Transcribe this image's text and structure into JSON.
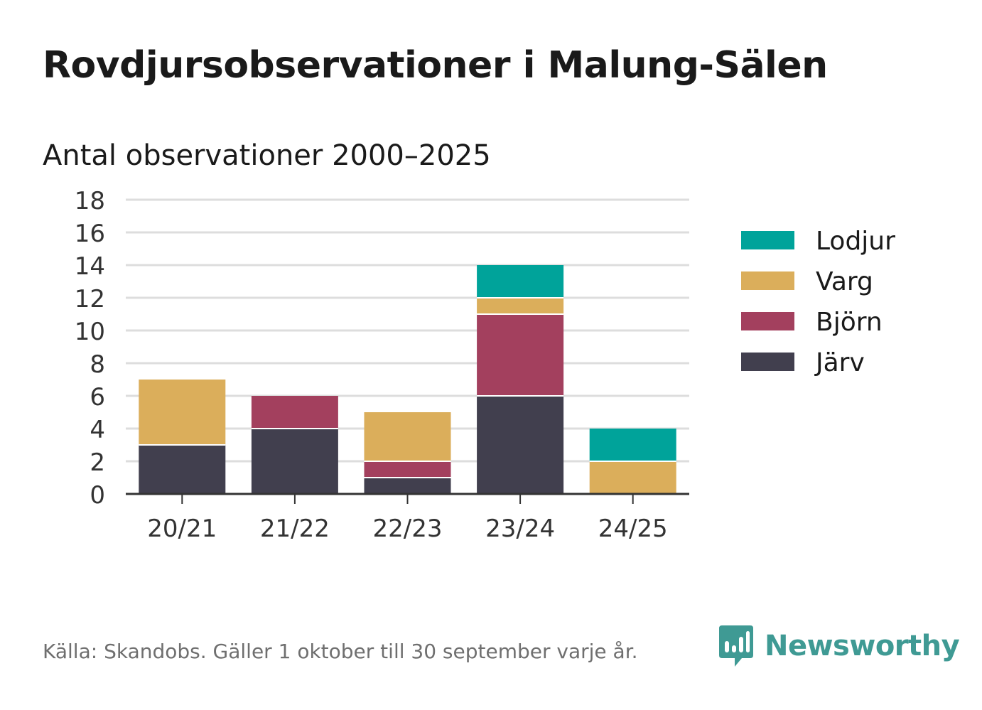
{
  "title": "Rovdjursobservationer i Malung-Sälen",
  "subtitle": "Antal observationer 2000–2025",
  "source": "Källa: Skandobs. Gäller 1 oktober till 30 september varje år.",
  "brand": {
    "name": "Newsworthy",
    "color": "#3f9a94",
    "icon": "newsworthy-logo-icon"
  },
  "chart_data": {
    "type": "bar",
    "stacked": true,
    "categories": [
      "20/21",
      "21/22",
      "22/23",
      "23/24",
      "24/25"
    ],
    "series": [
      {
        "name": "Järv",
        "color": "#413f4e",
        "values": [
          3,
          4,
          1,
          6,
          0
        ]
      },
      {
        "name": "Björn",
        "color": "#a3405e",
        "values": [
          0,
          2,
          1,
          5,
          0
        ]
      },
      {
        "name": "Varg",
        "color": "#dbae5b",
        "values": [
          4,
          0,
          3,
          1,
          2
        ]
      },
      {
        "name": "Lodjur",
        "color": "#00a39a",
        "values": [
          0,
          0,
          0,
          2,
          2
        ]
      }
    ],
    "ylim": [
      0,
      18
    ],
    "yticks": [
      "0",
      "2",
      "4",
      "6",
      "8",
      "10",
      "12",
      "14",
      "16",
      "18"
    ],
    "xlabel": "",
    "ylabel": "",
    "grid": true,
    "legend": {
      "placement": "right",
      "order": [
        "Lodjur",
        "Varg",
        "Björn",
        "Järv"
      ]
    }
  }
}
